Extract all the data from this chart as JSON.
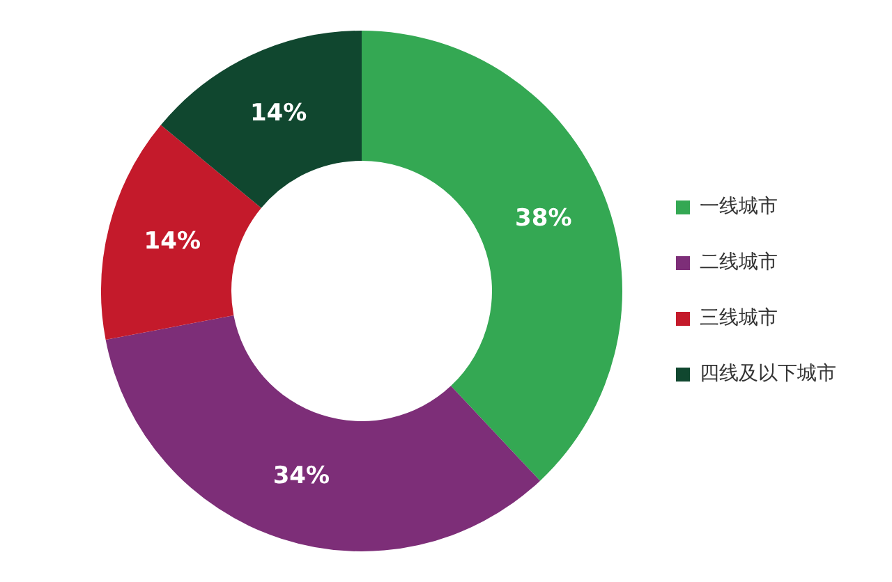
{
  "chart_data": {
    "type": "donut",
    "categories": [
      "一线城市",
      "二线城市",
      "三线城市",
      "四线及以下城市"
    ],
    "values": [
      38,
      34,
      14,
      14
    ],
    "colors": [
      "#34a853",
      "#7d2e78",
      "#c41a2b",
      "#10472f"
    ],
    "value_labels": [
      "38%",
      "34%",
      "14%",
      "14%"
    ],
    "legend": "right"
  }
}
